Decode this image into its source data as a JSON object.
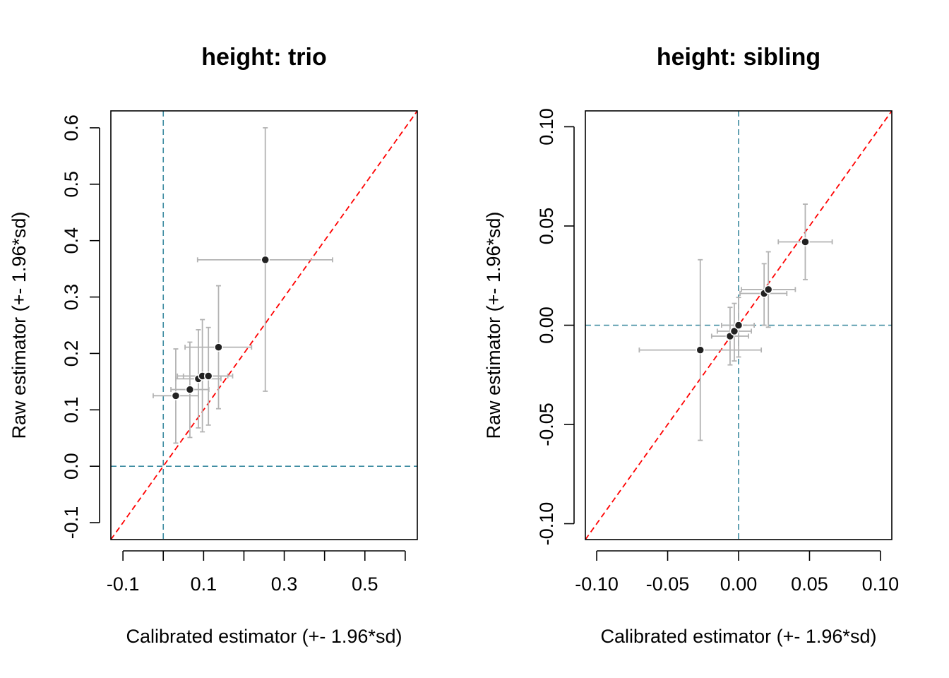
{
  "chart_data": [
    {
      "type": "scatter",
      "title": "height: trio",
      "xlabel": "Calibrated estimator (+- 1.96*sd)",
      "ylabel": "Raw estimator (+- 1.96*sd)",
      "xlim": [
        -0.13,
        0.63
      ],
      "ylim": [
        -0.13,
        0.63
      ],
      "x_ticks": [
        -0.1,
        0.0,
        0.1,
        0.2,
        0.3,
        0.4,
        0.5,
        0.6
      ],
      "x_tick_labels": [
        "-0.1",
        "",
        "0.1",
        "",
        "0.3",
        "",
        "0.5",
        ""
      ],
      "y_ticks": [
        -0.1,
        0.0,
        0.1,
        0.2,
        0.3,
        0.4,
        0.5,
        0.6
      ],
      "y_tick_labels": [
        "-0.1",
        "0.0",
        "0.1",
        "0.2",
        "0.3",
        "0.4",
        "0.5",
        "0.6"
      ],
      "points": [
        {
          "x": 0.031,
          "y": 0.125,
          "x_lo": -0.025,
          "x_hi": 0.087,
          "y_lo": 0.041,
          "y_hi": 0.208
        },
        {
          "x": 0.066,
          "y": 0.136,
          "x_lo": 0.019,
          "x_hi": 0.113,
          "y_lo": 0.051,
          "y_hi": 0.22
        },
        {
          "x": 0.087,
          "y": 0.155,
          "x_lo": 0.031,
          "x_hi": 0.143,
          "y_lo": 0.068,
          "y_hi": 0.242
        },
        {
          "x": 0.097,
          "y": 0.16,
          "x_lo": 0.035,
          "x_hi": 0.16,
          "y_lo": 0.061,
          "y_hi": 0.26
        },
        {
          "x": 0.112,
          "y": 0.16,
          "x_lo": 0.05,
          "x_hi": 0.172,
          "y_lo": 0.073,
          "y_hi": 0.246
        },
        {
          "x": 0.137,
          "y": 0.211,
          "x_lo": 0.054,
          "x_hi": 0.219,
          "y_lo": 0.102,
          "y_hi": 0.32
        },
        {
          "x": 0.253,
          "y": 0.366,
          "x_lo": 0.085,
          "x_hi": 0.42,
          "y_lo": 0.133,
          "y_hi": 0.6
        }
      ],
      "reference_lines": {
        "identity": "y = x",
        "vertical_x": 0,
        "horizontal_y": 0
      },
      "grid": false,
      "legend": "none"
    },
    {
      "type": "scatter",
      "title": "height: sibling",
      "xlabel": "Calibrated estimator (+- 1.96*sd)",
      "ylabel": "Raw estimator (+- 1.96*sd)",
      "xlim": [
        -0.108,
        0.108
      ],
      "ylim": [
        -0.108,
        0.108
      ],
      "x_ticks": [
        -0.1,
        -0.05,
        0.0,
        0.05,
        0.1
      ],
      "x_tick_labels": [
        "-0.10",
        "-0.05",
        "0.00",
        "0.05",
        "0.10"
      ],
      "y_ticks": [
        -0.1,
        -0.05,
        0.0,
        0.05,
        0.1
      ],
      "y_tick_labels": [
        "-0.10",
        "-0.05",
        "0.00",
        "0.05",
        "0.10"
      ],
      "points": [
        {
          "x": -0.027,
          "y": -0.0125,
          "x_lo": -0.07,
          "x_hi": 0.016,
          "y_lo": -0.058,
          "y_hi": 0.033
        },
        {
          "x": -0.006,
          "y": -0.0055,
          "x_lo": -0.019,
          "x_hi": 0.007,
          "y_lo": -0.02,
          "y_hi": 0.009
        },
        {
          "x": -0.003,
          "y": -0.003,
          "x_lo": -0.015,
          "x_hi": 0.009,
          "y_lo": -0.018,
          "y_hi": 0.011
        },
        {
          "x": 0.0,
          "y": 0.0,
          "x_lo": -0.012,
          "x_hi": 0.011,
          "y_lo": -0.016,
          "y_hi": 0.014
        },
        {
          "x": 0.018,
          "y": 0.016,
          "x_lo": 0.001,
          "x_hi": 0.034,
          "y_lo": 0.0,
          "y_hi": 0.031
        },
        {
          "x": 0.021,
          "y": 0.018,
          "x_lo": 0.002,
          "x_hi": 0.04,
          "y_lo": -0.001,
          "y_hi": 0.037
        },
        {
          "x": 0.047,
          "y": 0.042,
          "x_lo": 0.028,
          "x_hi": 0.066,
          "y_lo": 0.023,
          "y_hi": 0.061
        }
      ],
      "reference_lines": {
        "identity": "y = x",
        "vertical_x": 0,
        "horizontal_y": 0
      },
      "grid": false,
      "legend": "none"
    }
  ],
  "colors": {
    "identity_line": "#ff0000",
    "zero_lines": "#3b8aa0",
    "error_bars": "#b3b3b3",
    "points_fill": "#222222",
    "axes": "#000000"
  }
}
